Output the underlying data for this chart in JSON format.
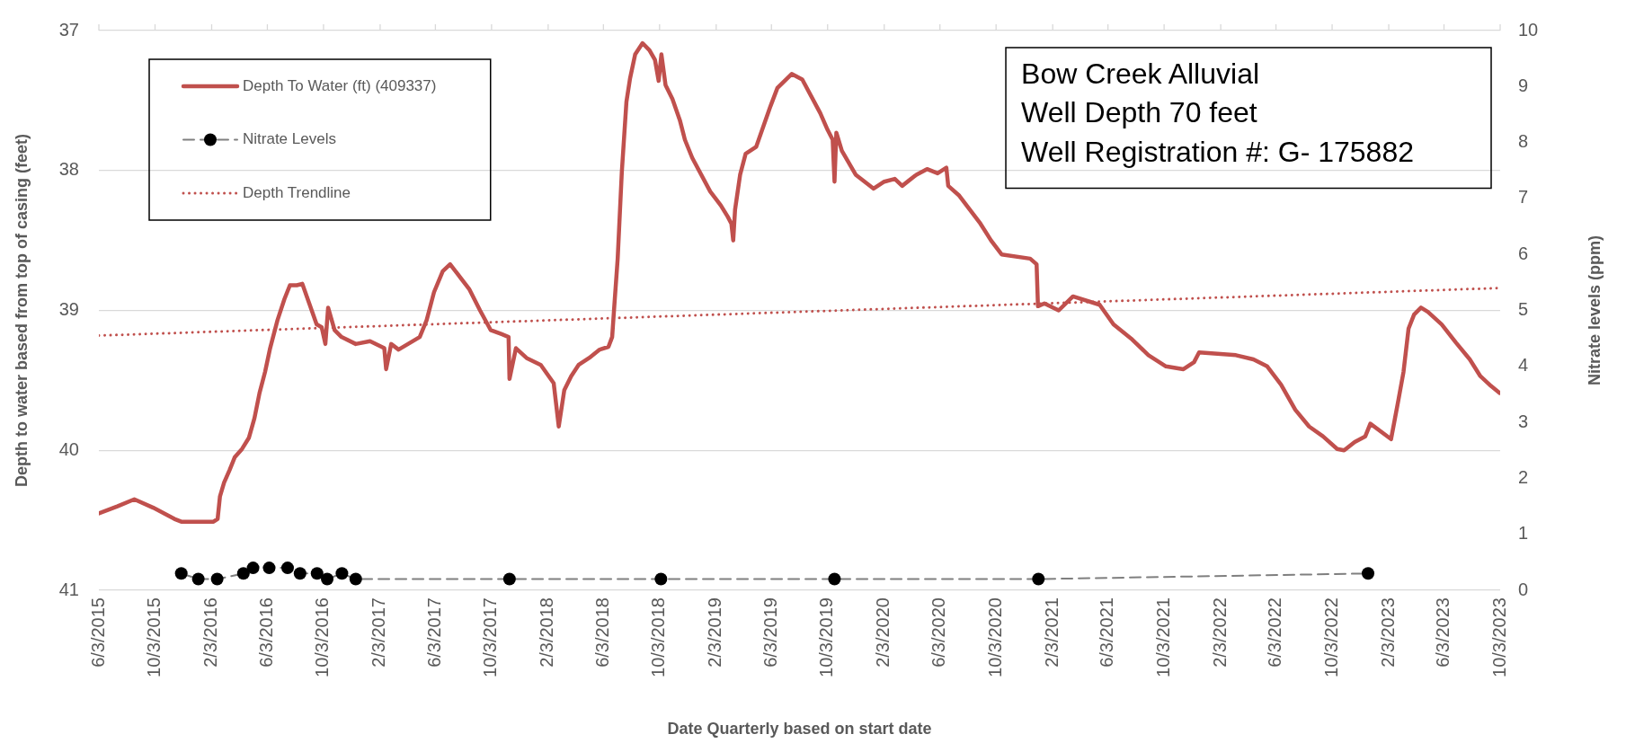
{
  "chart_data": {
    "type": "line",
    "xlabel": "Date Quarterly based on start date",
    "ylabel": "Depth to water based from top of casing (feet)",
    "y2label": "Nitrate levels (ppm)",
    "annotations": [
      "Bow Creek Alluvial",
      "Well Depth 70 feet",
      "Well Registration #: G- 175882"
    ],
    "xlim": [
      "2015-06-03",
      "2023-10-03"
    ],
    "xticks": [
      {
        "value": "2015-06-03",
        "label": "6/3/2015"
      },
      {
        "value": "2015-10-03",
        "label": "10/3/2015"
      },
      {
        "value": "2016-02-03",
        "label": "2/3/2016"
      },
      {
        "value": "2016-06-03",
        "label": "6/3/2016"
      },
      {
        "value": "2016-10-03",
        "label": "10/3/2016"
      },
      {
        "value": "2017-02-03",
        "label": "2/3/2017"
      },
      {
        "value": "2017-06-03",
        "label": "6/3/2017"
      },
      {
        "value": "2017-10-03",
        "label": "10/3/2017"
      },
      {
        "value": "2018-02-03",
        "label": "2/3/2018"
      },
      {
        "value": "2018-06-03",
        "label": "6/3/2018"
      },
      {
        "value": "2018-10-03",
        "label": "10/3/2018"
      },
      {
        "value": "2019-02-03",
        "label": "2/3/2019"
      },
      {
        "value": "2019-06-03",
        "label": "6/3/2019"
      },
      {
        "value": "2019-10-03",
        "label": "10/3/2019"
      },
      {
        "value": "2020-02-03",
        "label": "2/3/2020"
      },
      {
        "value": "2020-06-03",
        "label": "6/3/2020"
      },
      {
        "value": "2020-10-03",
        "label": "10/3/2020"
      },
      {
        "value": "2021-02-03",
        "label": "2/3/2021"
      },
      {
        "value": "2021-06-03",
        "label": "6/3/2021"
      },
      {
        "value": "2021-10-03",
        "label": "10/3/2021"
      },
      {
        "value": "2022-02-03",
        "label": "2/3/2022"
      },
      {
        "value": "2022-06-03",
        "label": "6/3/2022"
      },
      {
        "value": "2022-10-03",
        "label": "10/3/2022"
      },
      {
        "value": "2023-02-03",
        "label": "2/3/2023"
      },
      {
        "value": "2023-06-03",
        "label": "6/3/2023"
      },
      {
        "value": "2023-10-03",
        "label": "10/3/2023"
      }
    ],
    "ylim": [
      41,
      37
    ],
    "yticks": [
      37,
      38,
      39,
      40,
      41
    ],
    "y2lim": [
      0,
      10
    ],
    "y2ticks": [
      0,
      1,
      2,
      3,
      4,
      5,
      6,
      7,
      8,
      9,
      10
    ],
    "grid": "y",
    "legend": "top left",
    "series": [
      {
        "name": "Depth To Water (ft) (409337)",
        "type": "line",
        "color": "#c0504d",
        "marker": "none",
        "line_style": "solid",
        "x": [
          "2015-06-03",
          "2015-07-13",
          "2015-08-19",
          "2015-09-29",
          "2015-11-14",
          "2015-11-29",
          "2016-02-07",
          "2016-02-16",
          "2016-02-21",
          "2016-03-01",
          "2016-03-13",
          "2016-03-24",
          "2016-04-09",
          "2016-04-24",
          "2016-05-06",
          "2016-05-17",
          "2016-05-29",
          "2016-06-09",
          "2016-06-25",
          "2016-07-10",
          "2016-07-22",
          "2016-08-06",
          "2016-08-18",
          "2016-09-02",
          "2016-09-18",
          "2016-09-29",
          "2016-10-07",
          "2016-10-13",
          "2016-10-27",
          "2016-11-11",
          "2016-12-12",
          "2017-01-12",
          "2017-02-12",
          "2017-02-16",
          "2017-02-27",
          "2017-03-15",
          "2017-04-30",
          "2017-05-15",
          "2017-05-31",
          "2017-06-19",
          "2017-07-05",
          "2017-08-16",
          "2017-09-08",
          "2017-10-01",
          "2017-10-25",
          "2017-11-09",
          "2017-11-11",
          "2017-11-25",
          "2017-12-18",
          "2018-01-18",
          "2018-02-15",
          "2018-02-26",
          "2018-03-10",
          "2018-03-25",
          "2018-04-10",
          "2018-05-03",
          "2018-05-26",
          "2018-06-14",
          "2018-06-22",
          "2018-06-26",
          "2018-07-04",
          "2018-07-13",
          "2018-07-23",
          "2018-07-31",
          "2018-08-11",
          "2018-08-27",
          "2018-09-11",
          "2018-09-23",
          "2018-10-01",
          "2018-10-07",
          "2018-10-16",
          "2018-10-31",
          "2018-11-16",
          "2018-11-27",
          "2018-12-13",
          "2019-01-21",
          "2019-02-13",
          "2019-02-28",
          "2019-03-08",
          "2019-03-12",
          "2019-03-16",
          "2019-03-27",
          "2019-04-08",
          "2019-05-01",
          "2019-06-01",
          "2019-06-16",
          "2019-07-17",
          "2019-08-09",
          "2019-09-17",
          "2019-10-03",
          "2019-10-14",
          "2019-10-18",
          "2019-10-22",
          "2019-11-03",
          "2019-12-03",
          "2020-01-11",
          "2020-02-03",
          "2020-02-26",
          "2020-03-13",
          "2020-04-13",
          "2020-05-06",
          "2020-05-29",
          "2020-06-17",
          "2020-06-21",
          "2020-07-15",
          "2020-08-07",
          "2020-08-30",
          "2020-09-22",
          "2020-10-15",
          "2020-12-16",
          "2020-12-30",
          "2021-01-02",
          "2021-01-16",
          "2021-02-16",
          "2021-03-19",
          "2021-05-16",
          "2021-06-15",
          "2021-07-23",
          "2021-08-30",
          "2021-10-07",
          "2021-11-14",
          "2021-12-07",
          "2021-12-18",
          "2022-03-08",
          "2022-04-15",
          "2022-05-15",
          "2022-06-14",
          "2022-07-15",
          "2022-08-14",
          "2022-09-13",
          "2022-10-14",
          "2022-10-29",
          "2022-11-21",
          "2022-12-14",
          "2022-12-25",
          "2023-02-08",
          "2023-02-16",
          "2023-02-24",
          "2023-03-07",
          "2023-03-18",
          "2023-03-30",
          "2023-04-14",
          "2023-04-29",
          "2023-05-29",
          "2023-06-29",
          "2023-07-29",
          "2023-08-21",
          "2023-09-13",
          "2023-10-02"
        ],
        "values": [
          40.45,
          40.4,
          40.35,
          40.41,
          40.49,
          40.51,
          40.51,
          40.49,
          40.33,
          40.23,
          40.14,
          40.05,
          39.99,
          39.91,
          39.77,
          39.59,
          39.44,
          39.27,
          39.07,
          38.92,
          38.82,
          38.82,
          38.81,
          38.95,
          39.1,
          39.12,
          39.24,
          38.98,
          39.14,
          39.19,
          39.24,
          39.22,
          39.27,
          39.42,
          39.24,
          39.28,
          39.19,
          39.07,
          38.87,
          38.72,
          38.67,
          38.85,
          39.0,
          39.14,
          39.17,
          39.19,
          39.49,
          39.27,
          39.34,
          39.39,
          39.52,
          39.83,
          39.57,
          39.47,
          39.39,
          39.34,
          39.28,
          39.26,
          39.19,
          39.0,
          38.63,
          38.01,
          37.51,
          37.34,
          37.17,
          37.09,
          37.14,
          37.21,
          37.36,
          37.17,
          37.39,
          37.49,
          37.64,
          37.78,
          37.91,
          38.15,
          38.25,
          38.33,
          38.38,
          38.5,
          38.28,
          38.03,
          37.88,
          37.83,
          37.54,
          37.41,
          37.31,
          37.35,
          37.59,
          37.71,
          37.78,
          38.08,
          37.73,
          37.86,
          38.03,
          38.13,
          38.08,
          38.06,
          38.11,
          38.03,
          37.99,
          38.02,
          37.98,
          38.11,
          38.18,
          38.28,
          38.38,
          38.5,
          38.6,
          38.63,
          38.67,
          38.97,
          38.95,
          39.0,
          38.9,
          38.96,
          39.1,
          39.2,
          39.32,
          39.4,
          39.42,
          39.37,
          39.3,
          39.32,
          39.35,
          39.4,
          39.53,
          39.71,
          39.83,
          39.9,
          39.99,
          40.0,
          39.94,
          39.9,
          39.81,
          39.92,
          39.78,
          39.64,
          39.44,
          39.13,
          39.03,
          38.98,
          39.01,
          39.1,
          39.23,
          39.35,
          39.47,
          39.54,
          39.59
        ]
      },
      {
        "name": "Nitrate Levels",
        "type": "line",
        "axis": "y2",
        "color": "#000000",
        "marker": "circle",
        "line_style": "dashed",
        "x": [
          "2015-11-29",
          "2016-01-05",
          "2016-02-15",
          "2016-04-12",
          "2016-05-03",
          "2016-06-07",
          "2016-07-17",
          "2016-08-13",
          "2016-09-19",
          "2016-10-11",
          "2016-11-12",
          "2016-12-12",
          "2017-11-11",
          "2018-10-06",
          "2019-10-18",
          "2021-01-03",
          "2022-12-20"
        ],
        "values": [
          0.3,
          0.2,
          0.2,
          0.3,
          0.4,
          0.4,
          0.4,
          0.3,
          0.3,
          0.2,
          0.3,
          0.2,
          0.2,
          0.2,
          0.2,
          0.2,
          0.3
        ]
      },
      {
        "name": "Depth Trendline",
        "type": "line",
        "color": "#c0504d",
        "marker": "none",
        "line_style": "dotted",
        "x": [
          "2015-06-03",
          "2023-10-03"
        ],
        "values": [
          39.18,
          38.84
        ]
      }
    ]
  }
}
